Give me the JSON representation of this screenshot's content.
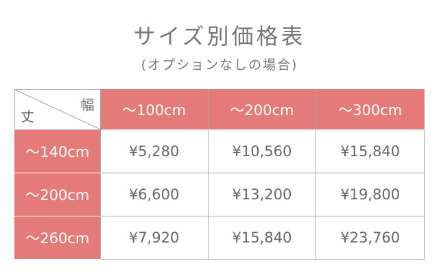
{
  "title": "サイズ別価格表",
  "subtitle": "(オプションなしの場合)",
  "table": {
    "corner": {
      "width_label": "幅",
      "height_label": "丈"
    },
    "columns": [
      "～100cm",
      "～200cm",
      "～300cm"
    ],
    "rows": [
      {
        "label": "～140cm",
        "prices": [
          "¥5,280",
          "¥10,560",
          "¥15,840"
        ]
      },
      {
        "label": "～200cm",
        "prices": [
          "¥6,600",
          "¥13,200",
          "¥19,800"
        ]
      },
      {
        "label": "～260cm",
        "prices": [
          "¥7,920",
          "¥15,840",
          "¥23,760"
        ]
      }
    ]
  },
  "colors": {
    "accent": "#e57b78",
    "text": "#666666"
  }
}
